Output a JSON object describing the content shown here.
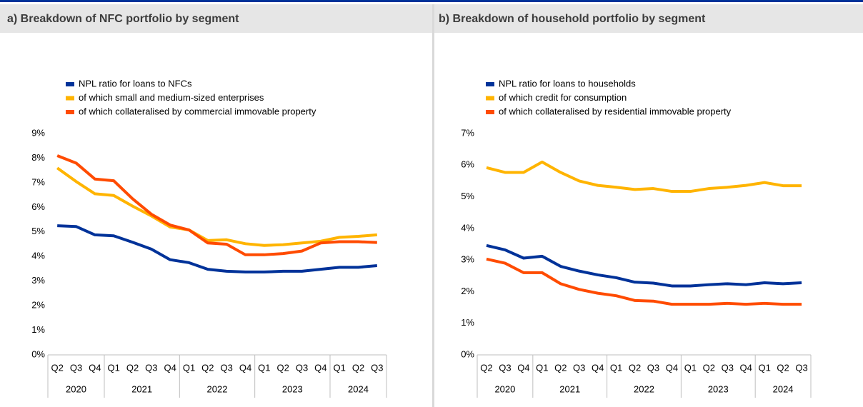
{
  "chart_data": [
    {
      "type": "line",
      "title": "a) Breakdown of NFC portfolio by segment",
      "category_groups": [
        {
          "label": "2020",
          "categories": [
            "Q2",
            "Q3",
            "Q4"
          ]
        },
        {
          "label": "2021",
          "categories": [
            "Q1",
            "Q2",
            "Q3",
            "Q4"
          ]
        },
        {
          "label": "2022",
          "categories": [
            "Q1",
            "Q2",
            "Q3",
            "Q4"
          ]
        },
        {
          "label": "2023",
          "categories": [
            "Q1",
            "Q2",
            "Q3",
            "Q4"
          ]
        },
        {
          "label": "2024",
          "categories": [
            "Q1",
            "Q2",
            "Q3"
          ]
        }
      ],
      "series": [
        {
          "name": "NPL ratio for loans to NFCs",
          "color": "#003299",
          "values": [
            5.25,
            5.22,
            4.88,
            4.84,
            4.58,
            4.3,
            3.87,
            3.75,
            3.48,
            3.4,
            3.37,
            3.37,
            3.4,
            3.4,
            3.48,
            3.56,
            3.56,
            3.63
          ]
        },
        {
          "name": "of which small and medium-sized enterprises",
          "color": "#ffb400",
          "values": [
            7.6,
            7.05,
            6.55,
            6.48,
            6.05,
            5.65,
            5.2,
            5.08,
            4.65,
            4.68,
            4.52,
            4.45,
            4.48,
            4.55,
            4.62,
            4.78,
            4.82,
            4.88
          ]
        },
        {
          "name": "of which collateralised by commercial immovable property",
          "color": "#ff4b00",
          "values": [
            8.1,
            7.8,
            7.15,
            7.08,
            6.35,
            5.72,
            5.28,
            5.08,
            4.55,
            4.5,
            4.07,
            4.07,
            4.12,
            4.22,
            4.55,
            4.6,
            4.6,
            4.57
          ]
        }
      ],
      "ylim": [
        0,
        9
      ],
      "yticks": [
        {
          "value": 0,
          "label": "0%"
        },
        {
          "value": 1,
          "label": "1%"
        },
        {
          "value": 2,
          "label": "2%"
        },
        {
          "value": 3,
          "label": "3%"
        },
        {
          "value": 4,
          "label": "4%"
        },
        {
          "value": 5,
          "label": "5%"
        },
        {
          "value": 6,
          "label": "6%"
        },
        {
          "value": 7,
          "label": "7%"
        },
        {
          "value": 8,
          "label": "8%"
        },
        {
          "value": 9,
          "label": "9%"
        }
      ],
      "grid": false,
      "legend": "top"
    },
    {
      "type": "line",
      "title": "b) Breakdown of household portfolio by segment",
      "category_groups": [
        {
          "label": "2020",
          "categories": [
            "Q2",
            "Q3",
            "Q4"
          ]
        },
        {
          "label": "2021",
          "categories": [
            "Q1",
            "Q2",
            "Q3",
            "Q4"
          ]
        },
        {
          "label": "2022",
          "categories": [
            "Q1",
            "Q2",
            "Q3",
            "Q4"
          ]
        },
        {
          "label": "2023",
          "categories": [
            "Q1",
            "Q2",
            "Q3",
            "Q4"
          ]
        },
        {
          "label": "2024",
          "categories": [
            "Q1",
            "Q2",
            "Q3"
          ]
        }
      ],
      "series": [
        {
          "name": "NPL ratio for loans to households",
          "color": "#003299",
          "values": [
            3.46,
            3.32,
            3.06,
            3.12,
            2.8,
            2.65,
            2.53,
            2.44,
            2.3,
            2.27,
            2.18,
            2.18,
            2.22,
            2.25,
            2.22,
            2.28,
            2.25,
            2.28
          ]
        },
        {
          "name": "of which credit for consumption",
          "color": "#ffb400",
          "values": [
            5.92,
            5.77,
            5.77,
            6.1,
            5.77,
            5.5,
            5.36,
            5.3,
            5.23,
            5.26,
            5.17,
            5.17,
            5.26,
            5.3,
            5.36,
            5.45,
            5.35,
            5.35
          ]
        },
        {
          "name": "of which collateralised by residential immovable property",
          "color": "#ff4b00",
          "values": [
            3.03,
            2.9,
            2.6,
            2.6,
            2.25,
            2.07,
            1.95,
            1.87,
            1.72,
            1.7,
            1.6,
            1.6,
            1.6,
            1.63,
            1.6,
            1.63,
            1.6,
            1.6
          ]
        }
      ],
      "ylim": [
        0,
        7
      ],
      "yticks": [
        {
          "value": 0,
          "label": "0%"
        },
        {
          "value": 1,
          "label": "1%"
        },
        {
          "value": 2,
          "label": "2%"
        },
        {
          "value": 3,
          "label": "3%"
        },
        {
          "value": 4,
          "label": "4%"
        },
        {
          "value": 5,
          "label": "5%"
        },
        {
          "value": 6,
          "label": "6%"
        },
        {
          "value": 7,
          "label": "7%"
        }
      ],
      "grid": false,
      "legend": "top"
    }
  ]
}
